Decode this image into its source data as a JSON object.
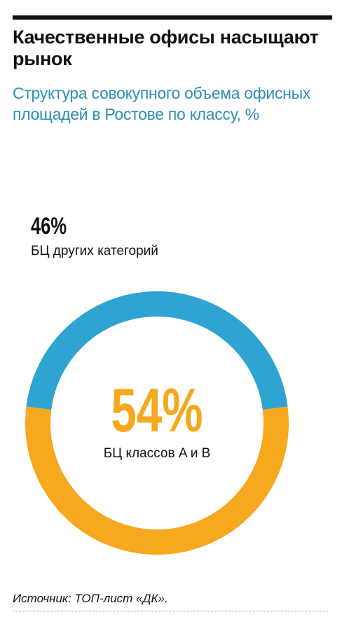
{
  "header": {
    "title": "Качественные офисы насыщают рынок",
    "subtitle": "Структура совокупного объема офисных площадей в Ростове по классу, %"
  },
  "chart_data": {
    "type": "pie",
    "title": "Структура совокупного объема офисных площадей в Ростове по классу, %",
    "slices": [
      {
        "label": "БЦ классов A и B",
        "value": 54,
        "display": "54%",
        "color": "#f6a81e"
      },
      {
        "label": "БЦ других категорий",
        "value": 46,
        "display": "46%",
        "color": "#2fa3d1"
      }
    ],
    "unit": "%"
  },
  "footer": {
    "source": "Источник: ТОП-лист «ДК»."
  }
}
